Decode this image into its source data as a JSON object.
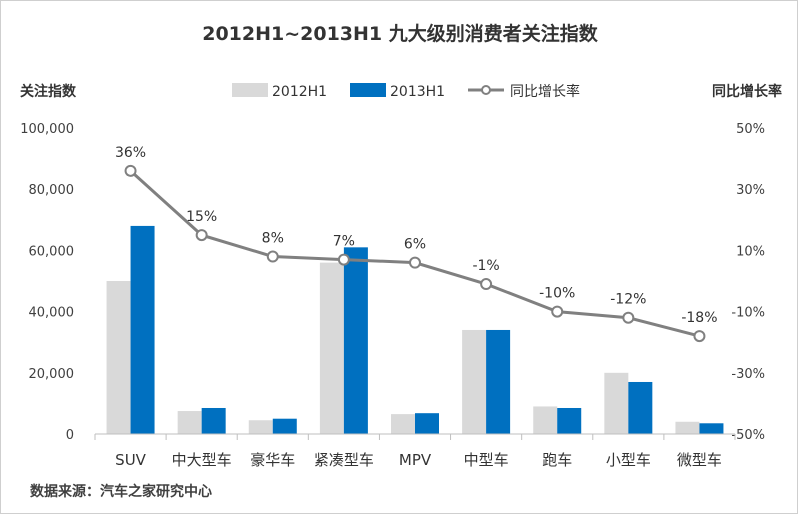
{
  "chart_data": {
    "type": "bar",
    "title": "2012H1~2013H1 九大级别消费者关注指数",
    "ylabel": "关注指数",
    "y2label": "同比增长率",
    "categories": [
      "SUV",
      "中大型车",
      "豪华车",
      "紧凑型车",
      "MPV",
      "中型车",
      "跑车",
      "小型车",
      "微型车"
    ],
    "series": [
      {
        "name": "2012H1",
        "type": "bar",
        "color": "#d9d9d9",
        "values": [
          50000,
          7500,
          4500,
          56000,
          6500,
          34000,
          9000,
          20000,
          4000
        ]
      },
      {
        "name": "2013H1",
        "type": "bar",
        "color": "#0070c0",
        "values": [
          68000,
          8500,
          5000,
          61000,
          6800,
          34000,
          8500,
          17000,
          3500
        ]
      },
      {
        "name": "同比增长率",
        "type": "line",
        "axis": "right",
        "color": "#808080",
        "values": [
          36,
          15,
          8,
          7,
          6,
          -1,
          -10,
          -12,
          -18
        ],
        "labels": [
          "36%",
          "15%",
          "8%",
          "7%",
          "6%",
          "-1%",
          "-10%",
          "-12%",
          "-18%"
        ]
      }
    ],
    "ylim": [
      0,
      100000
    ],
    "yticks": [
      "100,000",
      "80,000",
      "60,000",
      "40,000",
      "20,000",
      "0"
    ],
    "y2lim": [
      -50,
      50
    ],
    "y2ticks": [
      "50%",
      "30%",
      "10%",
      "-10%",
      "-30%",
      "-50%"
    ],
    "legend": [
      "2012H1",
      "2013H1",
      "同比增长率"
    ],
    "legend_position": "top",
    "grid": false
  },
  "source": "数据来源：汽车之家研究中心"
}
